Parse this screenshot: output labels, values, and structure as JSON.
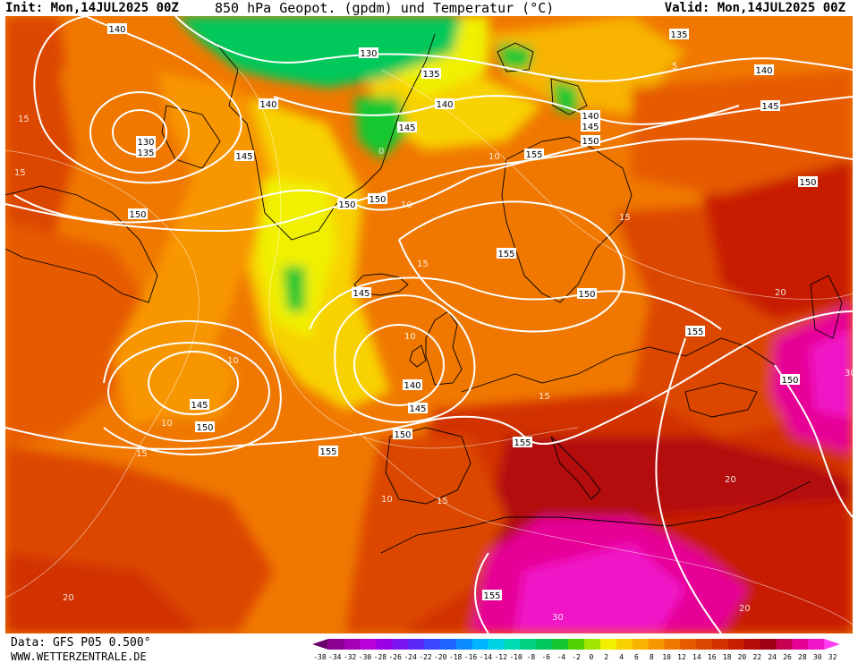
{
  "header": {
    "init": "Init: Mon,14JUL2025 00Z",
    "title": "850 hPa Geopot. (gpdm) und Temperatur (°C)",
    "valid": "Valid: Mon,14JUL2025 00Z"
  },
  "footer": {
    "data_source": "Data: GFS P05 0.500°",
    "website": "WWW.WETTERZENTRALE.DE"
  },
  "colorbar": {
    "ticks": [
      "-38",
      "-34",
      "-32",
      "-30",
      "-28",
      "-26",
      "-24",
      "-22",
      "-20",
      "-18",
      "-16",
      "-14",
      "-12",
      "-10",
      "-8",
      "-6",
      "-4",
      "-2",
      "0",
      "2",
      "4",
      "6",
      "8",
      "10",
      "12",
      "14",
      "16",
      "18",
      "20",
      "22",
      "24",
      "26",
      "28",
      "30",
      "32"
    ],
    "colors": [
      "#6a006a",
      "#8a0090",
      "#a400b4",
      "#b800d8",
      "#9a00e6",
      "#7a14f0",
      "#5a28f8",
      "#3c46ff",
      "#1e64ff",
      "#0a8cff",
      "#00b4ff",
      "#00d2e6",
      "#00dcb4",
      "#00d282",
      "#00c85a",
      "#14c832",
      "#50d200",
      "#a0e600",
      "#f0f000",
      "#f8d200",
      "#f8b400",
      "#f89600",
      "#f07800",
      "#e65a00",
      "#dc4600",
      "#d23200",
      "#c81e00",
      "#b40a0a",
      "#a00014",
      "#c80050",
      "#e60096",
      "#f014c8",
      "#ff3cf0"
    ]
  },
  "geopotential_labels": [
    {
      "text": "140",
      "kind": "label-140-nw"
    },
    {
      "text": "130",
      "kind": "label-130-greenland"
    },
    {
      "text": "135",
      "kind": "label-135-greenland"
    },
    {
      "text": "140",
      "kind": "label-140-greenland"
    },
    {
      "text": "140",
      "kind": "label-140-svalbard"
    },
    {
      "text": "135",
      "kind": "label-135-arctic"
    },
    {
      "text": "140",
      "kind": "label-140-ne"
    },
    {
      "text": "145",
      "kind": "label-145-ne"
    },
    {
      "text": "140",
      "kind": "label-140-barents"
    },
    {
      "text": "145",
      "kind": "label-145-barents"
    },
    {
      "text": "130",
      "kind": "label-130-lab"
    },
    {
      "text": "135",
      "kind": "label-135-lab"
    },
    {
      "text": "145",
      "kind": "label-145-lab"
    },
    {
      "text": "145",
      "kind": "label-145-iceland"
    },
    {
      "text": "150",
      "kind": "label-150-iceland"
    },
    {
      "text": "150",
      "kind": "label-150-iceland-2"
    },
    {
      "text": "150",
      "kind": "label-150-kola"
    },
    {
      "text": "155",
      "kind": "label-155-scand"
    },
    {
      "text": "150",
      "kind": "label-150-atl"
    },
    {
      "text": "150",
      "kind": "label-150-russia"
    },
    {
      "text": "155",
      "kind": "label-155-baltic"
    },
    {
      "text": "145",
      "kind": "label-145-atl-n"
    },
    {
      "text": "150",
      "kind": "label-150-poland"
    },
    {
      "text": "155",
      "kind": "label-155-ukraine"
    },
    {
      "text": "140",
      "kind": "label-140-biscay-n"
    },
    {
      "text": "145",
      "kind": "label-145-biscay"
    },
    {
      "text": "150",
      "kind": "label-150-biscay"
    },
    {
      "text": "145",
      "kind": "label-145-atl-low"
    },
    {
      "text": "150",
      "kind": "label-150-atl-low"
    },
    {
      "text": "155",
      "kind": "label-155-atl-sw"
    },
    {
      "text": "155",
      "kind": "label-155-france"
    },
    {
      "text": "150",
      "kind": "label-150-turkey"
    },
    {
      "text": "155",
      "kind": "label-155-sahara"
    }
  ],
  "temperature_labels": [
    "15",
    "10",
    "10",
    "10",
    "15",
    "15",
    "10",
    "15",
    "10",
    "15",
    "20",
    "15",
    "20",
    "20",
    "30",
    "30",
    "20",
    "10",
    "15",
    "0",
    "5"
  ]
}
